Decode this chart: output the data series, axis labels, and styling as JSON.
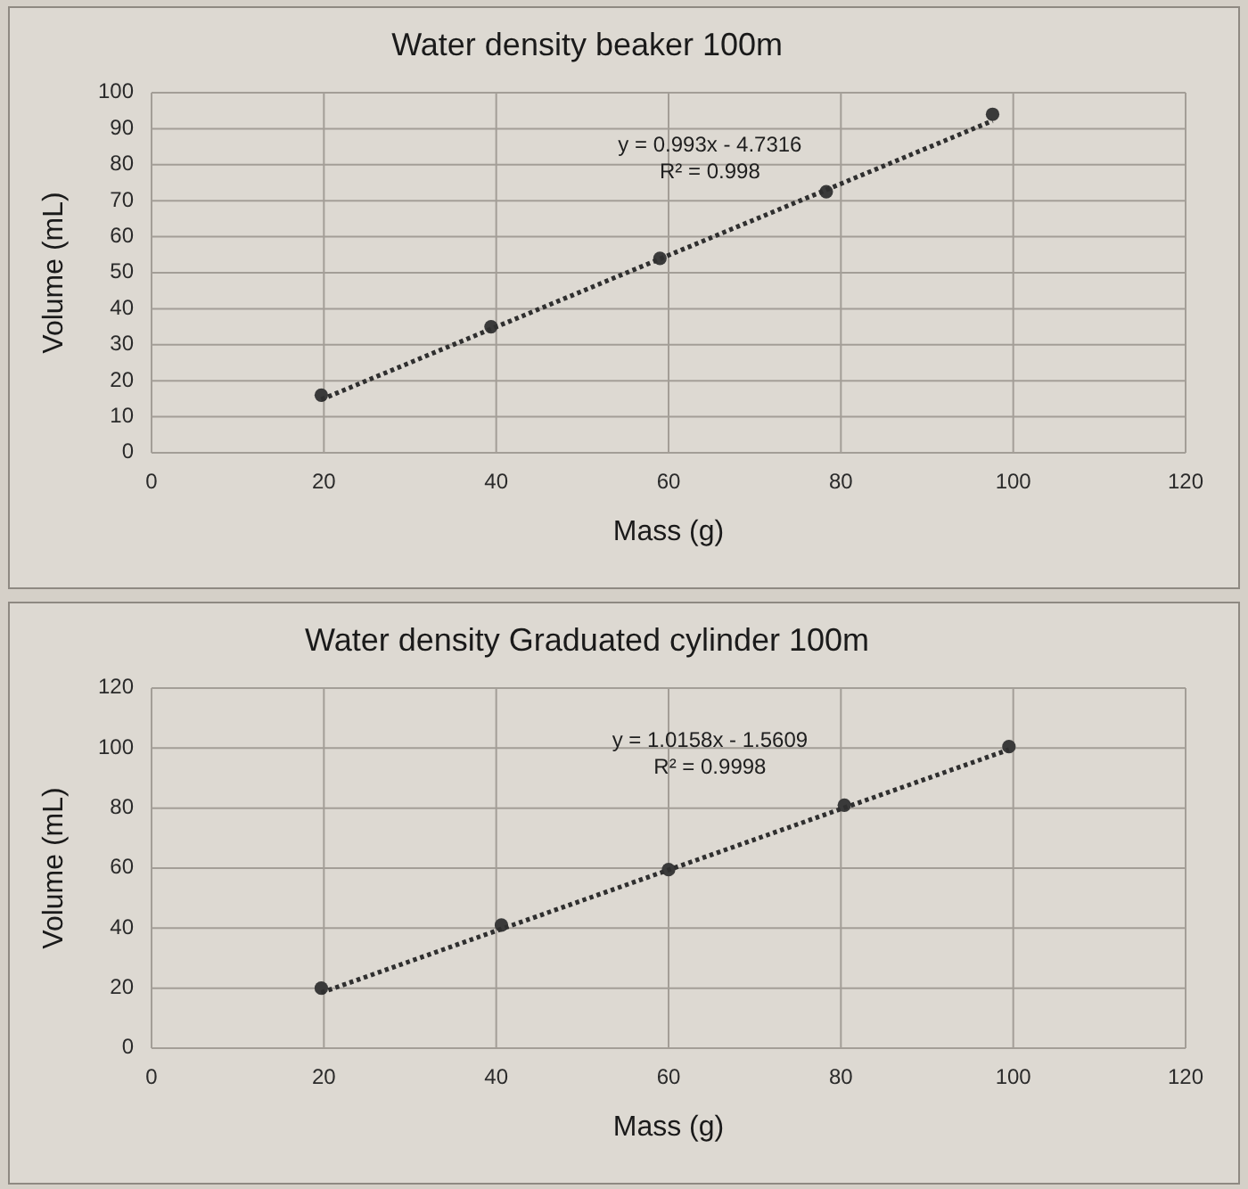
{
  "chart_data": [
    {
      "type": "scatter",
      "title": "Water density beaker 100m",
      "xlabel": "Mass (g)",
      "ylabel": "Volume (mL)",
      "xlim": [
        0,
        120
      ],
      "xticks": [
        0,
        20,
        40,
        60,
        80,
        100,
        120
      ],
      "ylim": [
        0,
        100
      ],
      "yticks": [
        0,
        10,
        20,
        30,
        40,
        50,
        60,
        70,
        80,
        90,
        100
      ],
      "grid": true,
      "series": [
        {
          "type": "scatter",
          "color": "#3a3a3a",
          "marker": "circle",
          "x": [
            19.7,
            39.4,
            59,
            78.3,
            97.6
          ],
          "values": [
            16,
            35,
            54,
            72.5,
            94
          ]
        },
        {
          "type": "line",
          "color": "#2f2f2f",
          "line_style": "dotted",
          "marker": "none",
          "x": [
            19.7,
            97.6
          ],
          "values": [
            14.8,
            92.2
          ]
        }
      ],
      "annotations": [
        "y = 0.993x - 4.7316",
        "R² = 0.998"
      ]
    },
    {
      "type": "scatter",
      "title": "Water density Graduated cylinder 100m",
      "xlabel": "Mass (g)",
      "ylabel": "Volume (mL)",
      "xlim": [
        0,
        120
      ],
      "xticks": [
        0,
        20,
        40,
        60,
        80,
        100,
        120
      ],
      "ylim": [
        0,
        120
      ],
      "yticks": [
        0,
        20,
        40,
        60,
        80,
        100,
        120
      ],
      "grid": true,
      "series": [
        {
          "type": "scatter",
          "color": "#3a3a3a",
          "marker": "circle",
          "x": [
            19.7,
            40.6,
            60,
            80.4,
            99.5
          ],
          "values": [
            20,
            41,
            59.5,
            81,
            100.5
          ]
        },
        {
          "type": "line",
          "color": "#2f2f2f",
          "line_style": "dotted",
          "marker": "none",
          "x": [
            19.7,
            99.5
          ],
          "values": [
            18.5,
            99.5
          ]
        }
      ],
      "annotations": [
        "y = 1.0158x - 1.5609",
        "R² = 0.9998"
      ]
    }
  ]
}
